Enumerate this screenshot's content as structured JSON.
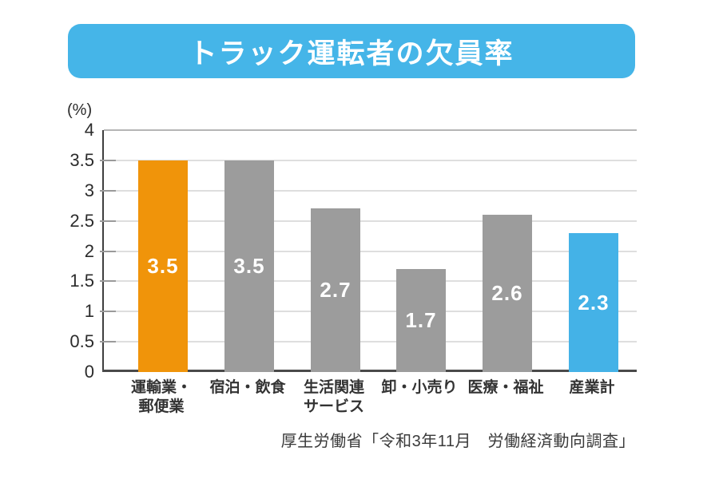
{
  "title": "トラック運転者の欠員率",
  "source": "厚生労働省「令和3年11月　労働経済動向調査」",
  "colors": {
    "banner_blue": "#45B5E8",
    "bar_orange": "#F0940A",
    "bar_gray": "#9C9C9C",
    "bar_blue": "#44B2E7",
    "axis_dark": "#4a4a4a",
    "gridline_gray": "#dedede",
    "value_label_white": "#ffffff"
  },
  "chart_data": {
    "type": "bar",
    "title": "トラック運転者の欠員率",
    "categories": [
      "運輸業・郵便業",
      "宿泊・飲食",
      "生活関連サービス",
      "卸・小売り",
      "医療・福祉",
      "産業計"
    ],
    "category_lines": [
      [
        "運輸業・",
        "郵便業"
      ],
      [
        "宿泊・飲食"
      ],
      [
        "生活関連",
        "サービス"
      ],
      [
        "卸・小売り"
      ],
      [
        "医療・福祉"
      ],
      [
        "産業計"
      ]
    ],
    "values": [
      3.5,
      3.5,
      2.7,
      1.7,
      2.6,
      2.3
    ],
    "value_labels": [
      "3.5",
      "3.5",
      "2.7",
      "1.7",
      "2.6",
      "2.3"
    ],
    "bar_colors": [
      "#F0940A",
      "#9C9C9C",
      "#9C9C9C",
      "#9C9C9C",
      "#9C9C9C",
      "#44B2E7"
    ],
    "xlabel": "",
    "ylabel": "(%)",
    "ylim": [
      0,
      4
    ],
    "ytick_step": 0.5,
    "yticks": [
      "0",
      "0.5",
      "1",
      "1.5",
      "2",
      "2.5",
      "3",
      "3.5",
      "4"
    ],
    "grid": true,
    "legend_position": "none",
    "source": "厚生労働省「令和3年11月　労働経済動向調査」"
  }
}
